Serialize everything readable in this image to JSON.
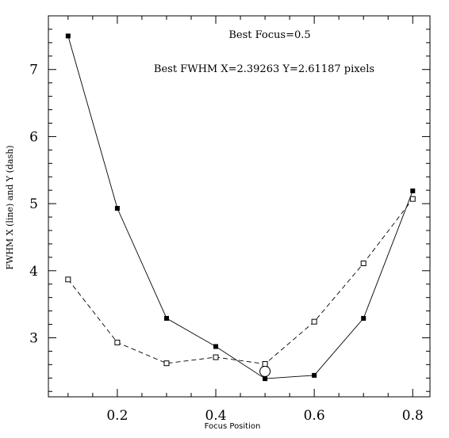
{
  "chart_data": {
    "type": "line",
    "title": "",
    "xlabel": "Focus Position",
    "ylabel": "FWHM X (line) and Y (dash)",
    "xlim": [
      0.06,
      0.835
    ],
    "ylim": [
      2.12,
      7.8
    ],
    "xticks": [
      {
        "value": 0.2,
        "label": "0.2"
      },
      {
        "value": 0.4,
        "label": "0.4"
      },
      {
        "value": 0.6,
        "label": "0.6"
      },
      {
        "value": 0.8,
        "label": "0.8"
      }
    ],
    "yticks": [
      {
        "value": 3,
        "label": "3"
      },
      {
        "value": 4,
        "label": "4"
      },
      {
        "value": 5,
        "label": "5"
      },
      {
        "value": 6,
        "label": "6"
      },
      {
        "value": 7,
        "label": "7"
      }
    ],
    "annotations": [
      {
        "id": "best-focus",
        "text": "Best Focus=0.5"
      },
      {
        "id": "best-fwhm",
        "text": "Best FWHM X=2.39263 Y=2.61187 pixels"
      }
    ],
    "best_focus_marker": {
      "x": 0.5,
      "y": 2.5
    },
    "series": [
      {
        "style": "solid",
        "marker": "filled-square",
        "x": [
          0.1,
          0.2,
          0.3,
          0.4,
          0.5,
          0.6,
          0.7,
          0.8
        ],
        "values": [
          7.5,
          4.93,
          3.29,
          2.87,
          2.39,
          2.44,
          3.29,
          5.19
        ]
      },
      {
        "style": "dashed",
        "marker": "open-square",
        "x": [
          0.1,
          0.2,
          0.3,
          0.4,
          0.5,
          0.6,
          0.7,
          0.8
        ],
        "values": [
          3.87,
          2.93,
          2.62,
          2.71,
          2.61,
          3.24,
          4.11,
          5.07
        ]
      }
    ],
    "grid": false,
    "legend": "none"
  }
}
